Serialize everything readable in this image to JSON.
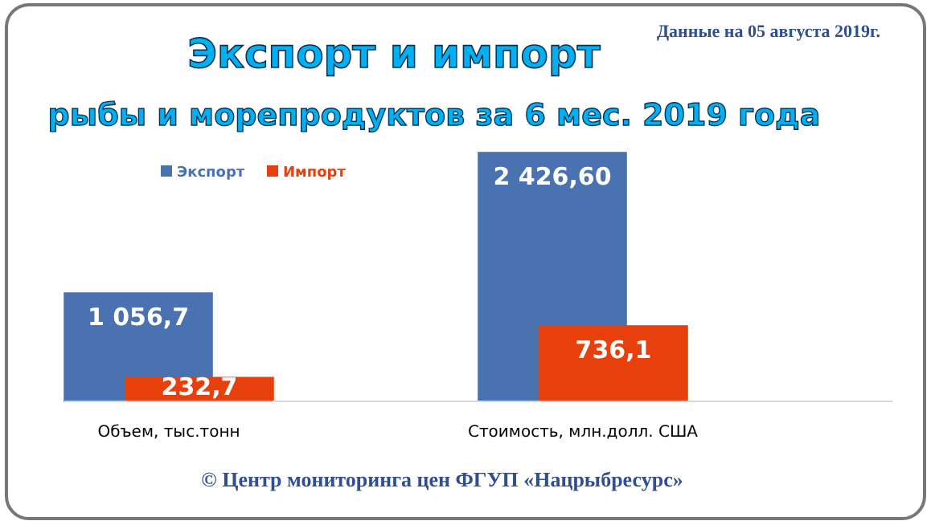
{
  "chart_data": {
    "type": "bar",
    "title": "Экспорт и импорт",
    "subtitle": "рыбы и морепродуктов за 6 мес. 2019 года",
    "categories": [
      "Объем, тыс.тонн",
      "Стоимость, млн.долл. США"
    ],
    "series": [
      {
        "name": "Экспорт",
        "color": "#4a72b0",
        "values": [
          1056.7,
          2426.6
        ],
        "value_labels": [
          "1 056,7",
          "2 426,60"
        ]
      },
      {
        "name": "Импорт",
        "color": "#e8400c",
        "values": [
          232.7,
          736.1
        ],
        "value_labels": [
          "232,7",
          "736,1"
        ]
      }
    ],
    "legend": "top left",
    "annotations": [
      "Данные на 05 августа 2019г.",
      "© Центр мониторинга цен ФГУП «Нацрыбресурс»"
    ]
  }
}
